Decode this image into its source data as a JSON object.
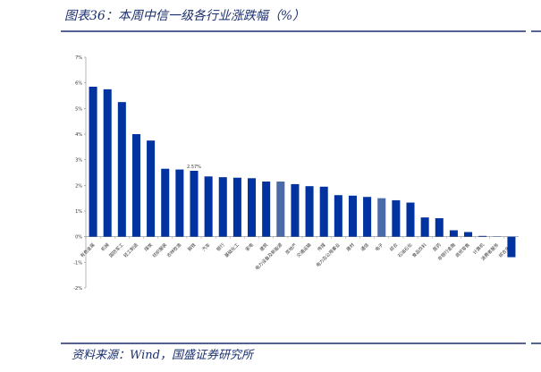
{
  "chart_data": {
    "type": "bar",
    "title": "图表36：本周中信一级各行业涨跌幅（%）",
    "source": "资料来源：Wind，国盛证券研究所",
    "categories": [
      "有色金属",
      "机械",
      "国防军工",
      "轻工制造",
      "煤炭",
      "纺织服装",
      "农林牧渔",
      "钢铁",
      "汽车",
      "银行",
      "基础化工",
      "家电",
      "建筑",
      "电力设备及新能源",
      "房地产",
      "交通运输",
      "传媒",
      "电力及公用事业",
      "建材",
      "通信",
      "电子",
      "综合",
      "石油石化",
      "食品饮料",
      "医药",
      "非银行金融",
      "商贸零售",
      "计算机",
      "消费者服务",
      "综合金融"
    ],
    "values": [
      5.85,
      5.75,
      5.25,
      4.0,
      3.75,
      2.65,
      2.62,
      2.57,
      2.35,
      2.32,
      2.3,
      2.28,
      2.15,
      2.15,
      2.05,
      1.97,
      1.95,
      1.62,
      1.6,
      1.55,
      1.5,
      1.42,
      1.33,
      0.75,
      0.72,
      0.25,
      0.18,
      0.03,
      0.01,
      -0.8
    ],
    "value_labels": [
      null,
      null,
      null,
      null,
      null,
      null,
      null,
      "2.57%",
      null,
      null,
      null,
      null,
      null,
      null,
      null,
      null,
      null,
      null,
      null,
      null,
      null,
      null,
      null,
      null,
      null,
      null,
      null,
      null,
      null,
      null
    ],
    "colors": [
      "#0033a0",
      "#0033a0",
      "#0033a0",
      "#0033a0",
      "#0033a0",
      "#0033a0",
      "#0033a0",
      "#0033a0",
      "#0033a0",
      "#0033a0",
      "#0033a0",
      "#0033a0",
      "#0033a0",
      "#4a6aaa",
      "#0033a0",
      "#0033a0",
      "#0033a0",
      "#0033a0",
      "#0033a0",
      "#0033a0",
      "#4a6aaa",
      "#0033a0",
      "#0033a0",
      "#0033a0",
      "#0033a0",
      "#0033a0",
      "#0033a0",
      "#0033a0",
      "#0033a0",
      "#0033a0"
    ],
    "ylim": [
      -2,
      7
    ],
    "yticks": [
      {
        "value": -2,
        "label": "-2%"
      },
      {
        "value": -1,
        "label": "-1%"
      },
      {
        "value": 0,
        "label": "0%"
      },
      {
        "value": 1,
        "label": "1%"
      },
      {
        "value": 2,
        "label": "2%"
      },
      {
        "value": 3,
        "label": "3%"
      },
      {
        "value": 4,
        "label": "4%"
      },
      {
        "value": 5,
        "label": "5%"
      },
      {
        "value": 6,
        "label": "6%"
      },
      {
        "value": 7,
        "label": "7%"
      }
    ],
    "grid": false
  }
}
